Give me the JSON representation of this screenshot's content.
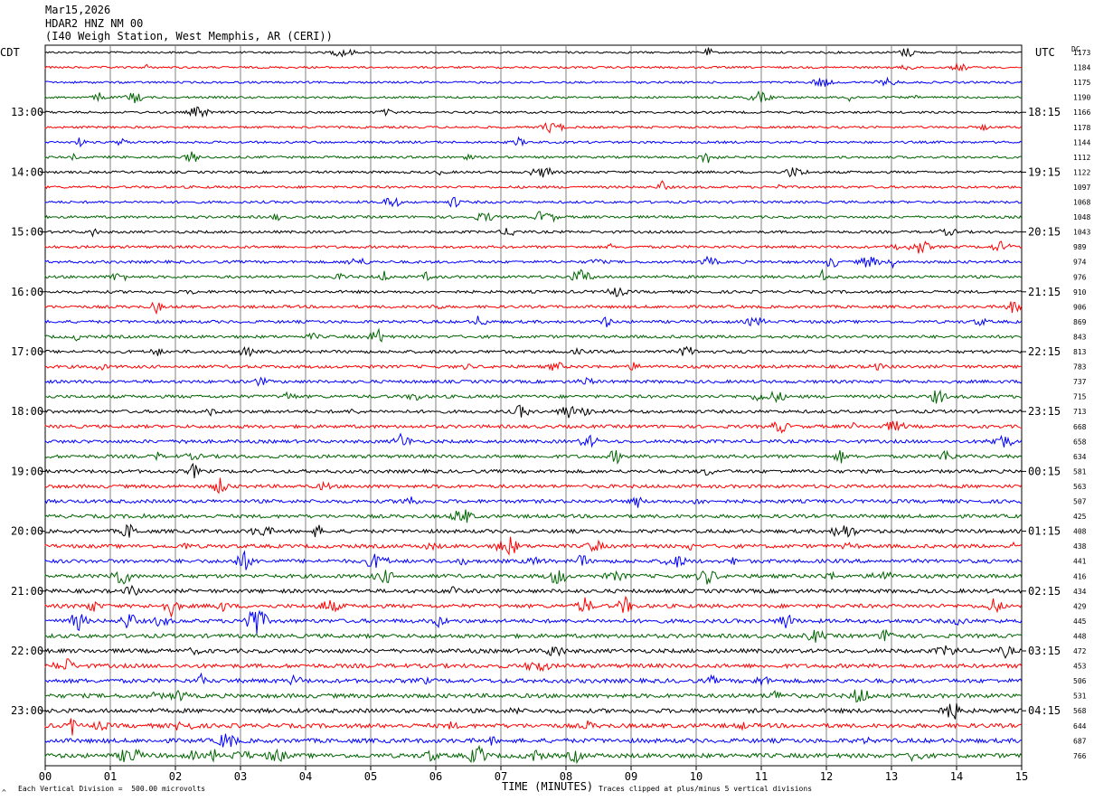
{
  "header": {
    "date": "Mar15,2026",
    "channel": "HDAR2 HNZ NM 00",
    "station": "(I40 Weigh Station, West Memphis, AR (CERI))"
  },
  "left_axis_title": "CDT",
  "right_axis_title": "UTC",
  "dc_title": "DC",
  "footer": {
    "scale": "Each Vertical Division =  500.00 microvolts",
    "clip": "Traces clipped at plus/minus 5 vertical divisions",
    "corner_mark": "^"
  },
  "colors": {
    "trace_cycle": [
      "#000000",
      "#ff0000",
      "#0000ff",
      "#006400"
    ],
    "grid": "#808080"
  },
  "chart_data": {
    "type": "line",
    "title": "",
    "xlabel": "TIME (MINUTES)",
    "ylabel": "",
    "x_range": [
      0,
      15
    ],
    "x_ticks": [
      "00",
      "01",
      "02",
      "03",
      "04",
      "05",
      "06",
      "07",
      "08",
      "09",
      "10",
      "11",
      "12",
      "13",
      "14",
      "15"
    ],
    "left_hour_labels": [
      "13:00",
      "14:00",
      "15:00",
      "16:00",
      "17:00",
      "18:00",
      "19:00",
      "20:00",
      "21:00",
      "22:00",
      "23:00"
    ],
    "right_hour_labels": [
      "18:15",
      "19:15",
      "20:15",
      "21:15",
      "22:15",
      "23:15",
      "00:15",
      "01:15",
      "02:15",
      "03:15",
      "04:15"
    ],
    "trace_count": 48,
    "dc_offsets": [
      "1173",
      "1184",
      "1175",
      "1190",
      "1166",
      "1178",
      "1144",
      "1112",
      "1122",
      "1097",
      "1068",
      "1048",
      "1043",
      "989",
      "974",
      "976",
      "910",
      "906",
      "869",
      "843",
      "813",
      "783",
      "737",
      "715",
      "713",
      "668",
      "658",
      "634",
      "581",
      "563",
      "507",
      "425",
      "408",
      "438",
      "441",
      "416",
      "434",
      "429",
      "445",
      "448",
      "472",
      "453",
      "506",
      "531",
      "568",
      "644",
      "687",
      "766"
    ],
    "grid": true
  }
}
